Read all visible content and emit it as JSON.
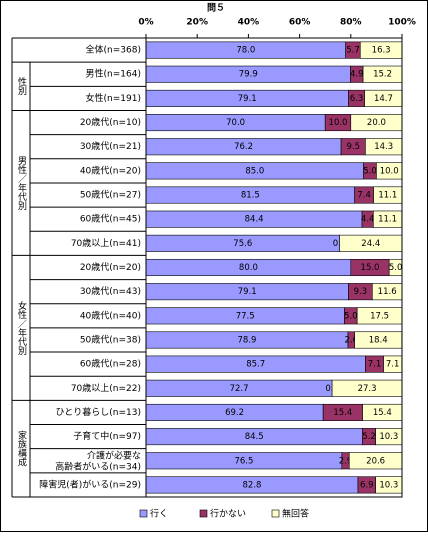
{
  "chart_data": {
    "type": "stacked-bar-horizontal",
    "title": "問５",
    "categories": [
      "全体(n=368)",
      "男性(n=164)",
      "女性(n=191)",
      "20歳代(n=10)",
      "30歳代(n=21)",
      "40歳代(n=20)",
      "50歳代(n=27)",
      "60歳代(n=45)",
      "70歳以上(n=41)",
      "20歳代(n=20)",
      "30歳代(n=43)",
      "40歳代(n=40)",
      "50歳代(n=38)",
      "60歳代(n=28)",
      "70歳以上(n=22)",
      "ひとり暮らし(n=13)",
      "子育て中(n=97)",
      "介護が必要な\n高齢者がいる(n=34)",
      "障害児(者)がいる(n=29)"
    ],
    "category_groups": [
      null,
      "性別",
      "性別",
      "男性／年代別",
      "男性／年代別",
      "男性／年代別",
      "男性／年代別",
      "男性／年代別",
      "男性／年代別",
      "女性／年代別",
      "女性／年代別",
      "女性／年代別",
      "女性／年代別",
      "女性／年代別",
      "女性／年代別",
      "家族構成",
      "家族構成",
      "家族構成",
      "家族構成"
    ],
    "series": [
      {
        "name": "行く",
        "color": "#9999ff",
        "values": [
          78.0,
          79.9,
          79.1,
          70.0,
          76.2,
          85.0,
          81.5,
          84.4,
          75.6,
          80.0,
          79.1,
          77.5,
          78.9,
          85.7,
          72.7,
          69.2,
          84.5,
          76.5,
          82.8
        ],
        "value_labels": [
          "78.0",
          "79.9",
          "79.1",
          "70.0",
          "76.2",
          "85.0",
          "81.5",
          "84.4",
          "75.6",
          "80.0",
          "79.1",
          "77.5",
          "78.9",
          "85.7",
          "72.7",
          "69.2",
          "84.5",
          "76.5",
          "82.8"
        ]
      },
      {
        "name": "行かない",
        "color": "#993366",
        "values": [
          5.7,
          4.9,
          6.3,
          10.0,
          9.5,
          5.0,
          7.4,
          4.4,
          0.0,
          15.0,
          9.3,
          5.0,
          2.6,
          7.1,
          0.0,
          15.4,
          5.2,
          2.9,
          6.9
        ],
        "value_labels": [
          "5.7",
          "4.9",
          "6.3",
          "10.0",
          "9.5",
          "5.0",
          "7.4",
          "4.4",
          "0.0",
          "15.0",
          "9.3",
          "5.0",
          "2.6",
          "7.1",
          "0.0",
          "15.4",
          "5.2",
          "2.9",
          "6.9"
        ]
      },
      {
        "name": "無回答",
        "color": "#ffffcc",
        "values": [
          16.3,
          15.2,
          14.7,
          20.0,
          14.3,
          10.0,
          11.1,
          11.1,
          24.4,
          5.0,
          11.6,
          17.5,
          18.4,
          7.1,
          27.3,
          15.4,
          10.3,
          20.6,
          10.3
        ],
        "value_labels": [
          "16.3",
          "15.2",
          "14.7",
          "20.0",
          "14.3",
          "10.0",
          "11.1",
          "11.1",
          "24.4",
          "5.0",
          "11.6",
          "17.5",
          "18.4",
          "7.1",
          "27.3",
          "15.4",
          "10.3",
          "20.6",
          "10.3"
        ]
      }
    ],
    "xlim": [
      0,
      100
    ],
    "xticks": [
      {
        "value": 0,
        "label": "0%"
      },
      {
        "value": 20,
        "label": "20%"
      },
      {
        "value": 40,
        "label": "40%"
      },
      {
        "value": 60,
        "label": "60%"
      },
      {
        "value": 80,
        "label": "80%"
      },
      {
        "value": 100,
        "label": "100%"
      }
    ],
    "legend": "bottom"
  }
}
